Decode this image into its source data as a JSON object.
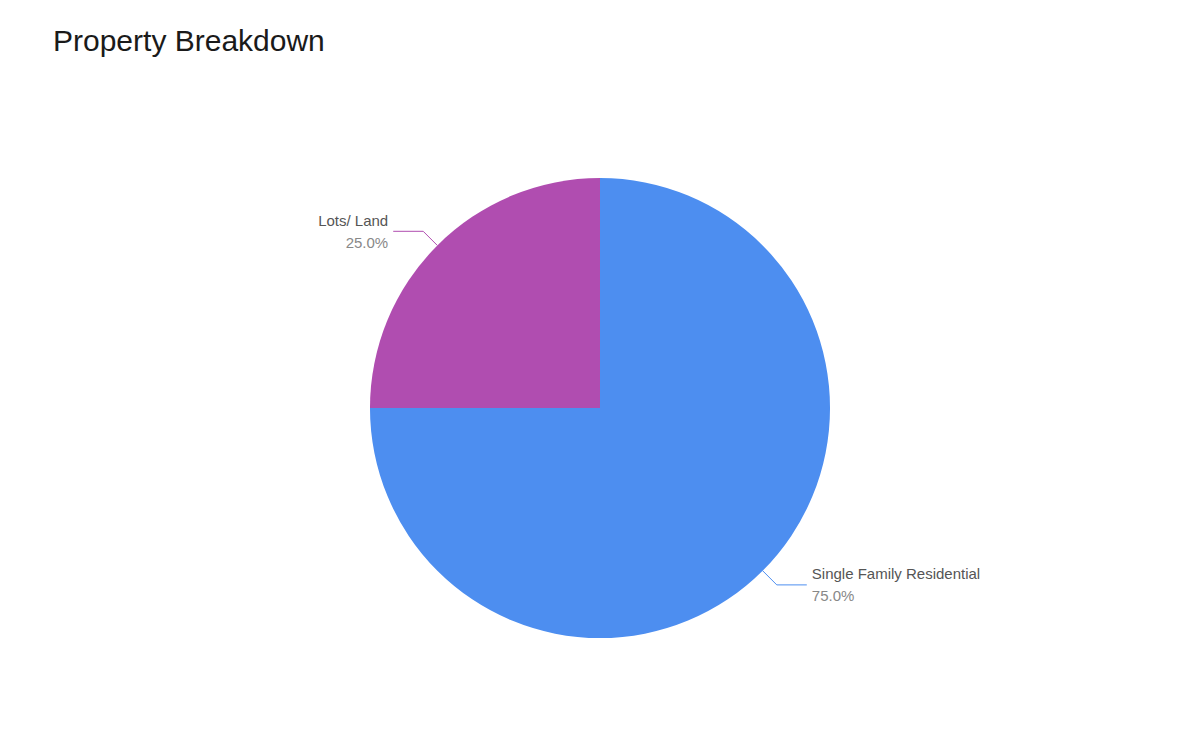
{
  "chart_data": {
    "type": "pie",
    "title": "Property Breakdown",
    "categories": [
      "Single Family Residential",
      "Lots/ Land"
    ],
    "values": [
      75.0,
      25.0
    ],
    "value_labels": [
      "75.0%",
      "25.0%"
    ],
    "colors": [
      "#4d8ef0",
      "#b04db0"
    ],
    "data_labels": true
  }
}
